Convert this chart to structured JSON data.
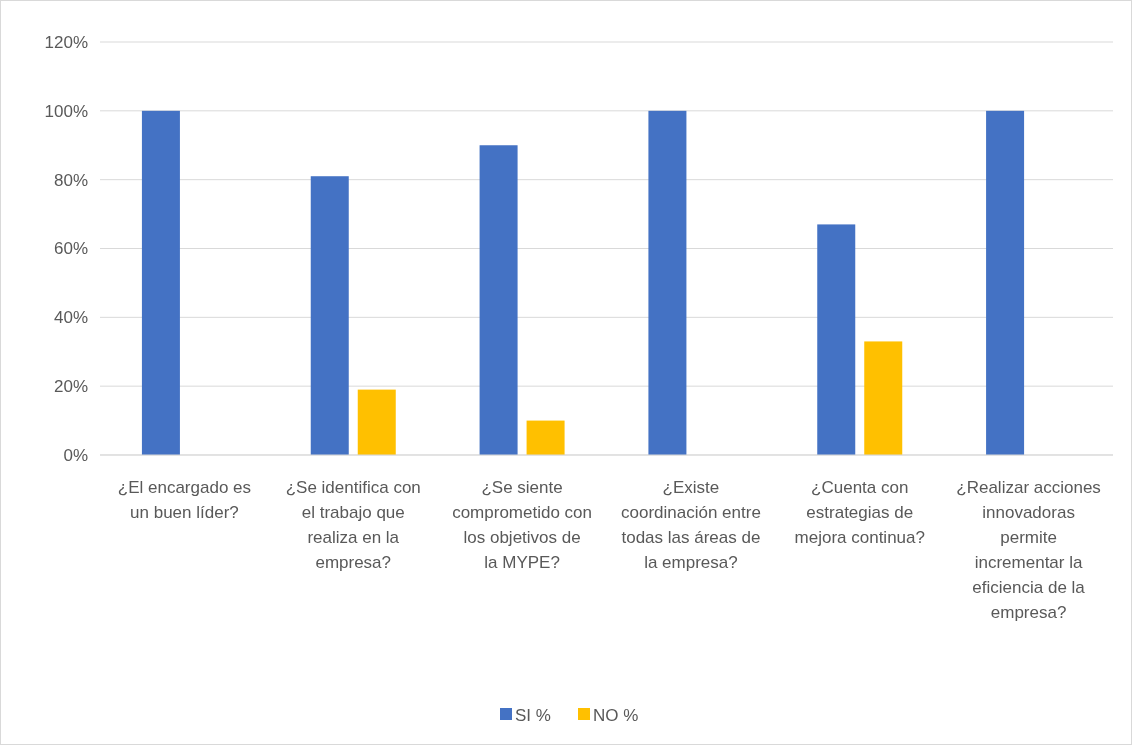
{
  "chart_data": {
    "type": "bar",
    "categories": [
      "¿El encargado es un buen líder?",
      "¿Se identifica con el trabajo que realiza en la empresa?",
      "¿Se siente comprometido con los objetivos de la MYPE?",
      "¿Existe coordinación entre todas las áreas de la empresa?",
      "¿Cuenta con estrategias de mejora continua?",
      "¿Realizar acciones innovadoras permite incrementar la eficiencia de la empresa?"
    ],
    "series": [
      {
        "name": "SI %",
        "color": "#4472c4",
        "values": [
          100,
          81,
          90,
          100,
          67,
          100
        ]
      },
      {
        "name": "NO %",
        "color": "#ffc000",
        "values": [
          0,
          19,
          10,
          0,
          33,
          0
        ]
      }
    ],
    "ylim": [
      0,
      120
    ],
    "yticks": [
      {
        "value": 0,
        "label": "0%"
      },
      {
        "value": 20,
        "label": "20%"
      },
      {
        "value": 40,
        "label": "40%"
      },
      {
        "value": 60,
        "label": "60%"
      },
      {
        "value": 80,
        "label": "80%"
      },
      {
        "value": 100,
        "label": "100%"
      },
      {
        "value": 120,
        "label": "120%"
      }
    ],
    "grid": "y",
    "legend": "bottom"
  }
}
